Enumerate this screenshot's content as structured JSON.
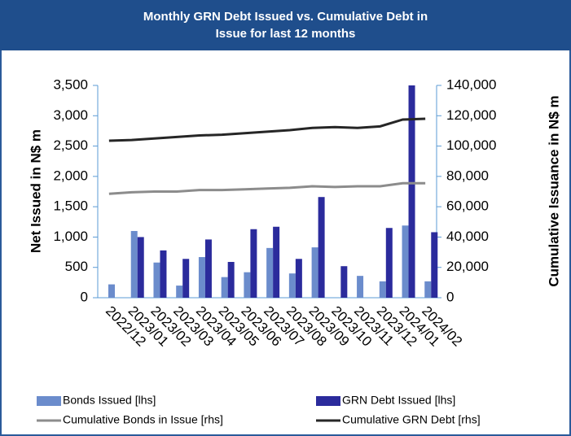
{
  "chart_data": {
    "type": "bar",
    "title": "Monthly GRN Debt Issued vs. Cumulative Debt in Issue for last 12 months",
    "y_label": "Net Issued in N$ m",
    "y2_label": "Cumulative Issuance in N$ m",
    "categories": [
      "2022/12",
      "2023/01",
      "2023/02",
      "2023/03",
      "2023/04",
      "2023/05",
      "2023/06",
      "2023/07",
      "2023/08",
      "2023/09",
      "2023/10",
      "2023/11",
      "2023/12",
      "2024/01",
      "2024/02"
    ],
    "series": [
      {
        "name": "Bonds Issued [lhs]",
        "type": "bar",
        "color": "#6b8ccc",
        "values": [
          220,
          1100,
          580,
          200,
          670,
          340,
          420,
          820,
          400,
          830,
          0,
          360,
          270,
          1190,
          270
        ]
      },
      {
        "name": "GRN Debt Issued [lhs]",
        "type": "bar",
        "color": "#2b2b9c",
        "values": [
          0,
          1000,
          780,
          640,
          960,
          590,
          1130,
          1170,
          640,
          1660,
          520,
          0,
          1150,
          3500,
          1080
        ]
      },
      {
        "name": "Cumulative Bonds in Issue [rhs]",
        "type": "line",
        "axis": "y2",
        "color": "#8c8c8c",
        "values": [
          68500,
          69500,
          70000,
          70000,
          71000,
          71000,
          71500,
          72000,
          72500,
          73500,
          73000,
          73500,
          73500,
          75500,
          75500
        ]
      },
      {
        "name": "Cumulative GRN Debt [rhs]",
        "type": "line",
        "axis": "y2",
        "color": "#262626",
        "values": [
          103500,
          104000,
          105000,
          106000,
          107000,
          107500,
          108500,
          109500,
          110500,
          112000,
          112500,
          112000,
          113000,
          117500,
          118000
        ]
      }
    ],
    "ylim": [
      0,
      3500
    ],
    "yticks": [
      0,
      500,
      {
        "value": 1000,
        "label": "1,000"
      },
      {
        "value": 1500,
        "label": "1,500"
      },
      {
        "value": 2000,
        "label": "2,000"
      },
      {
        "value": 2500,
        "label": "2,500"
      },
      {
        "value": 3000,
        "label": "3,000"
      },
      {
        "value": 3500,
        "label": "3,500"
      }
    ],
    "y2lim": [
      0,
      140000
    ],
    "y2ticks": [
      0,
      {
        "value": 20000,
        "label": "20,000"
      },
      {
        "value": 40000,
        "label": "40,000"
      },
      {
        "value": 60000,
        "label": "60,000"
      },
      {
        "value": 80000,
        "label": "80,000"
      },
      {
        "value": 100000,
        "label": "100,000"
      },
      {
        "value": 120000,
        "label": "120,000"
      },
      {
        "value": 140000,
        "label": "140,000"
      }
    ],
    "grid": false
  }
}
